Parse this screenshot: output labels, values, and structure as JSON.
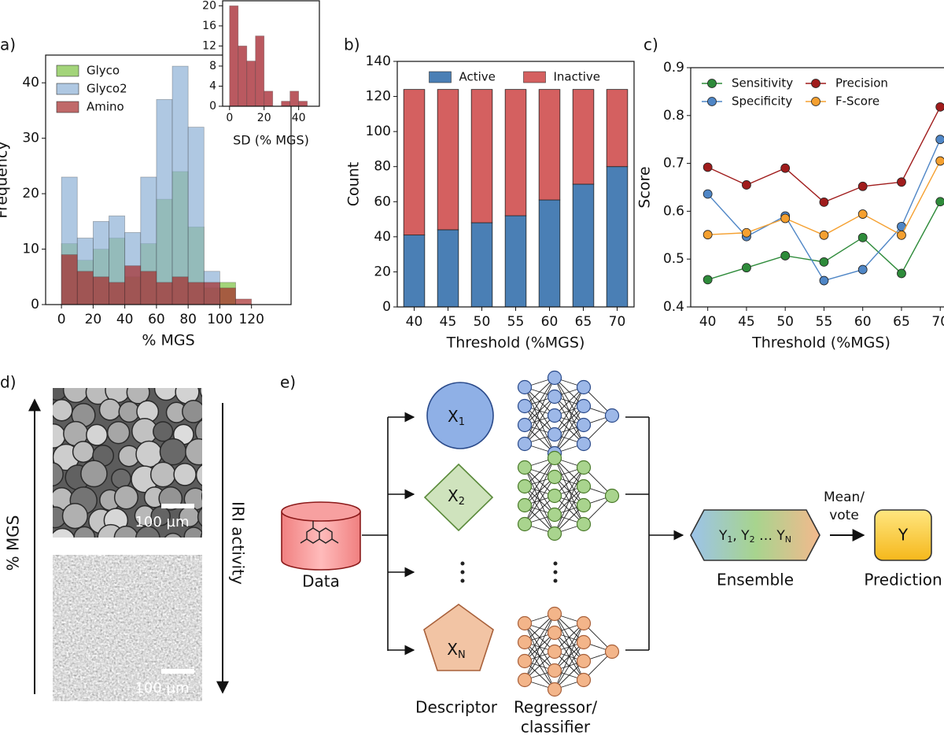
{
  "panel_labels": [
    "a)",
    "b)",
    "c)",
    "d)",
    "e)"
  ],
  "chart_data": [
    {
      "type": "histogram",
      "xlabel": "% MGS",
      "ylabel": "Frequency",
      "bins": [
        0,
        10,
        20,
        30,
        40,
        50,
        60,
        70,
        80,
        90,
        100,
        110,
        120
      ],
      "series": [
        {
          "name": "Glyco",
          "color": "#7cc242",
          "values": [
            11,
            8,
            10,
            12,
            5,
            11,
            19,
            24,
            14,
            3,
            4,
            0
          ]
        },
        {
          "name": "Glyco2",
          "color": "#8db0d6",
          "values": [
            23,
            12,
            15,
            16,
            13,
            23,
            37,
            43,
            32,
            6,
            0,
            0
          ]
        },
        {
          "name": "Amino",
          "color": "#a52a2a",
          "values": [
            9,
            6,
            5,
            4,
            7,
            6,
            4,
            5,
            4,
            4,
            3,
            1
          ]
        }
      ],
      "xlim": [
        -10,
        145
      ],
      "ylim": [
        0,
        45
      ],
      "xticks": [
        0,
        20,
        40,
        60,
        80,
        100,
        120
      ],
      "yticks": [
        0,
        10,
        20,
        30,
        40
      ],
      "legend": "upper left",
      "alpha": 0.7
    },
    {
      "type": "histogram",
      "xlabel": "SD (% MGS)",
      "bins": [
        0,
        5,
        10,
        15,
        20,
        25,
        30,
        35,
        40,
        45
      ],
      "values": [
        20,
        12,
        9,
        14,
        3,
        0,
        1,
        3,
        1
      ],
      "color": "#b3474f",
      "xlim": [
        -4,
        52
      ],
      "ylim": [
        0,
        21
      ],
      "xticks": [
        0,
        20,
        40
      ],
      "yticks": [
        0,
        4,
        8,
        12,
        16,
        20
      ],
      "alpha": 0.9
    },
    {
      "type": "bar",
      "stacked": true,
      "xlabel": "Threshold (%MGS)",
      "ylabel": "Count",
      "categories": [
        "40",
        "45",
        "50",
        "55",
        "60",
        "65",
        "70"
      ],
      "series": [
        {
          "name": "Active",
          "color": "#4a7fb5",
          "values": [
            41,
            44,
            48,
            52,
            61,
            70,
            80
          ]
        },
        {
          "name": "Inactive",
          "color": "#d46060",
          "values": [
            83,
            80,
            76,
            72,
            63,
            54,
            44
          ]
        }
      ],
      "ylim": [
        0,
        140
      ],
      "yticks": [
        0,
        20,
        40,
        60,
        80,
        100,
        120,
        140
      ],
      "legend": "upper center",
      "legend_columns": 2
    },
    {
      "type": "line",
      "xlabel": "Threshold (%MGS)",
      "ylabel": "Score",
      "x": [
        40,
        45,
        50,
        55,
        60,
        65,
        70
      ],
      "series": [
        {
          "name": "Sensitivity",
          "color": "#2e8b3a",
          "values": [
            0.457,
            0.482,
            0.507,
            0.494,
            0.545,
            0.47,
            0.62
          ]
        },
        {
          "name": "Specificity",
          "color": "#4f86c6",
          "values": [
            0.636,
            0.547,
            0.59,
            0.455,
            0.478,
            0.568,
            0.75
          ]
        },
        {
          "name": "Precision",
          "color": "#a01c1c",
          "values": [
            0.692,
            0.655,
            0.69,
            0.619,
            0.652,
            0.661,
            0.818
          ]
        },
        {
          "name": "F-Score",
          "color": "#f5a030",
          "values": [
            0.551,
            0.555,
            0.585,
            0.55,
            0.594,
            0.55,
            0.705
          ]
        }
      ],
      "xlim": [
        37.8,
        71.5
      ],
      "ylim": [
        0.4,
        0.9
      ],
      "xticks": [
        40,
        45,
        50,
        55,
        60,
        65,
        70
      ],
      "yticks": [
        0.4,
        0.5,
        0.6,
        0.7,
        0.8,
        0.9
      ],
      "legend": "upper left",
      "legend_columns": 2
    }
  ],
  "micrographs": {
    "scale_bars": [
      "100 µm",
      "100 µm"
    ],
    "left_axis": "% MGS",
    "right_axis": "IRI activity"
  },
  "diagram": {
    "data": "Data",
    "descriptors": [
      {
        "symbol": "X",
        "sub": "1"
      },
      {
        "symbol": "X",
        "sub": "2"
      },
      {
        "symbol": "X",
        "sub": "N"
      }
    ],
    "column_labels": [
      "Descriptor",
      "Regressor/",
      "classifier"
    ],
    "formula": [
      "Y",
      "1",
      ", Y",
      "2",
      " … Y",
      "N"
    ],
    "ensemble": "Ensemble",
    "aggregation": [
      "Mean/",
      "vote"
    ],
    "output": "Y",
    "prediction": "Prediction"
  }
}
